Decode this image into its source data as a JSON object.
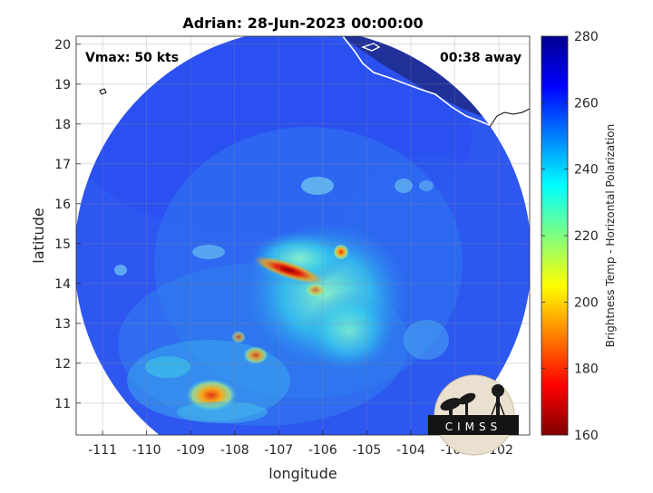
{
  "chart_data": {
    "type": "heatmap",
    "title": "Adrian: 28-Jun-2023 00:00:00",
    "xlabel": "longitude",
    "ylabel": "latitude",
    "xlim": [
      -111.6,
      -101.3
    ],
    "ylim": [
      10.2,
      20.2
    ],
    "xticks": [
      -111,
      -110,
      -109,
      -108,
      -107,
      -106,
      -105,
      -104,
      -103,
      -102
    ],
    "yticks": [
      11,
      12,
      13,
      14,
      15,
      16,
      17,
      18,
      19,
      20
    ],
    "x_tick_labels": [
      "-111",
      "-110",
      "-109",
      "-108",
      "-107",
      "-106",
      "-105",
      "-104",
      "-103",
      "-102"
    ],
    "y_tick_labels": [
      "11",
      "12",
      "13",
      "14",
      "15",
      "16",
      "17",
      "18",
      "19",
      "20"
    ],
    "grid": true,
    "annotations": {
      "left": "Vmax: 50 kts",
      "right": "00:38 away"
    },
    "colorbar": {
      "label": "Brightness Temp - Horizontal Polarization",
      "min": 160,
      "max": 280,
      "ticks": [
        160,
        180,
        200,
        220,
        240,
        260,
        280
      ],
      "tick_labels": [
        "160",
        "180",
        "200",
        "220",
        "240",
        "260",
        "280"
      ],
      "colormap": "jet"
    },
    "background_value": 262,
    "features": [
      {
        "name": "core",
        "lon": -106.6,
        "lat": 14.2,
        "value": 175
      },
      {
        "name": "inner-warm",
        "lon": -106.0,
        "lat": 14.3,
        "value": 225
      },
      {
        "name": "hot-spot-north",
        "lon": -105.7,
        "lat": 14.8,
        "value": 180
      },
      {
        "name": "southwest-cell",
        "lon": -108.5,
        "lat": 11.2,
        "value": 190
      },
      {
        "name": "south-cell",
        "lon": -107.6,
        "lat": 12.3,
        "value": 205
      }
    ]
  },
  "logo": {
    "text": "CIMSS"
  }
}
